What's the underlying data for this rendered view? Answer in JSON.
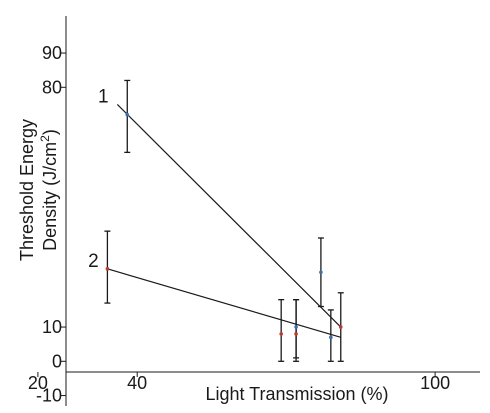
{
  "chart_data": {
    "type": "scatter",
    "title": "",
    "xlabel": "Light Transmission (%)",
    "ylabel_line1": "Threshold Energy",
    "ylabel_line2_prefix": "Density (J/cm",
    "ylabel_line2_sup": "2",
    "ylabel_line2_suffix": ")",
    "xlim": [
      20,
      100
    ],
    "ylim": [
      -10,
      90
    ],
    "x_ticks": [
      20,
      40,
      100
    ],
    "y_ticks": [
      -10,
      0,
      10,
      80,
      90
    ],
    "grid": false,
    "series": [
      {
        "label": "1",
        "color": "#3a6fb0",
        "points": [
          {
            "x": 38,
            "y": 72,
            "err_low": 61,
            "err_high": 82
          },
          {
            "x": 77,
            "y": 26,
            "err_low": 16,
            "err_high": 36
          },
          {
            "x": 72,
            "y": 10,
            "err_low": 1,
            "err_high": 18
          },
          {
            "x": 79,
            "y": 7,
            "err_low": 0,
            "err_high": 15
          }
        ],
        "fit": {
          "x_start": 36,
          "y_start": 75,
          "x_end": 81,
          "y_end": 10
        }
      },
      {
        "label": "2",
        "color": "#c0392b",
        "points": [
          {
            "x": 34,
            "y": 27,
            "err_low": 17,
            "err_high": 38
          },
          {
            "x": 69,
            "y": 8,
            "err_low": 0,
            "err_high": 18
          },
          {
            "x": 72,
            "y": 8,
            "err_low": 0,
            "err_high": 18
          },
          {
            "x": 81,
            "y": 10,
            "err_low": 0,
            "err_high": 20
          }
        ],
        "fit": {
          "x_start": 34,
          "y_start": 27,
          "x_end": 81,
          "y_end": 7
        }
      }
    ]
  }
}
